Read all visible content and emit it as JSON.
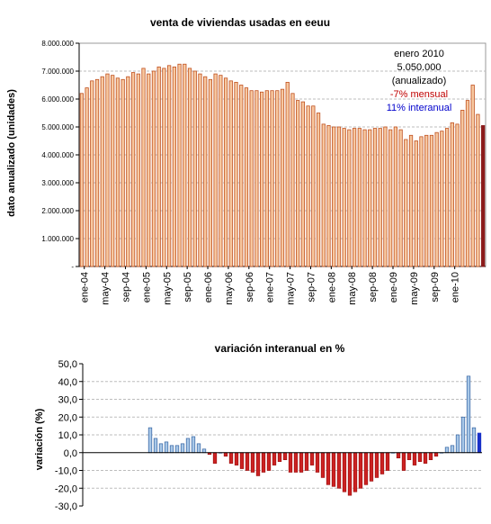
{
  "chart_data": [
    {
      "type": "bar",
      "title": "venta de viviendas usadas en eeuu",
      "ylabel": "dato anualizado (unidades)",
      "ylim": [
        0,
        8000000
      ],
      "y_ticks": [
        "-",
        "1.000.000",
        "2.000.000",
        "3.000.000",
        "4.000.000",
        "5.000.000",
        "6.000.000",
        "7.000.000",
        "8.000.000"
      ],
      "x_tick_labels": [
        "ene-04",
        "may-04",
        "sep-04",
        "ene-05",
        "may-05",
        "sep-05",
        "ene-06",
        "may-06",
        "sep-06",
        "ene-07",
        "may-07",
        "sep-07",
        "ene-08",
        "may-08",
        "sep-08",
        "ene-09",
        "may-09",
        "sep-09",
        "ene-10"
      ],
      "grid": true,
      "colors": {
        "bar_fill": "#F7C8A0",
        "bar_stroke": "#C0501E",
        "highlight_fill": "#8B1A1A",
        "plot_bg": "#FFFFFF"
      },
      "annotation": {
        "lines": [
          {
            "text": "enero 2010",
            "color": "#000000"
          },
          {
            "text": "5.050.000",
            "color": "#000000"
          },
          {
            "text": "(anualizado)",
            "color": "#000000"
          },
          {
            "text": "-7% mensual",
            "color": "#C00000"
          },
          {
            "text": "11% interanual",
            "color": "#0000CC"
          }
        ]
      },
      "values": [
        6200000,
        6400000,
        6650000,
        6700000,
        6800000,
        6900000,
        6850000,
        6750000,
        6700000,
        6800000,
        6950000,
        6900000,
        7100000,
        6900000,
        7000000,
        7150000,
        7100000,
        7200000,
        7150000,
        7250000,
        7250000,
        7100000,
        7000000,
        6900000,
        6800000,
        6700000,
        6900000,
        6850000,
        6750000,
        6650000,
        6600000,
        6500000,
        6400000,
        6300000,
        6300000,
        6250000,
        6300000,
        6300000,
        6300000,
        6350000,
        6600000,
        6200000,
        5950000,
        5900000,
        5750000,
        5750000,
        5500000,
        5100000,
        5050000,
        5000000,
        5000000,
        4950000,
        4900000,
        4950000,
        4950000,
        4900000,
        4900000,
        4950000,
        4950000,
        5000000,
        4900000,
        5000000,
        4900000,
        4550000,
        4700000,
        4500000,
        4650000,
        4700000,
        4700000,
        4800000,
        4850000,
        4950000,
        5150000,
        5100000,
        5600000,
        5950000,
        6500000,
        5450000,
        5050000
      ]
    },
    {
      "type": "bar",
      "title": "variación interanual en %",
      "ylabel": "variación (%)",
      "ylim": [
        -30,
        50
      ],
      "y_ticks": [
        "-30,0",
        "-20,0",
        "-10,0",
        "0,0",
        "10,0",
        "20,0",
        "30,0",
        "40,0",
        "50,0"
      ],
      "grid": true,
      "colors": {
        "pos_fill": "#A8C8E8",
        "pos_stroke": "#3060A0",
        "neg_fill": "#CC2222",
        "neg_stroke": "#A01010",
        "highlight_fill": "#1830C8"
      },
      "values": [
        null,
        null,
        null,
        null,
        null,
        null,
        null,
        null,
        null,
        null,
        null,
        null,
        14,
        8,
        5,
        6,
        4,
        4,
        5,
        8,
        9,
        5,
        2,
        -1,
        -6,
        0,
        -2,
        -6,
        -7,
        -9,
        -10,
        -11,
        -13,
        -11,
        -10,
        -7,
        -5,
        -4,
        -11,
        -11,
        -11,
        -10,
        -7,
        -11,
        -14,
        -18,
        -19,
        -20,
        -22,
        -24,
        -22,
        -20,
        -18,
        -16,
        -14,
        -12,
        -10,
        0,
        -3,
        -10,
        -4,
        -7,
        -5,
        -6,
        -4,
        -2,
        0,
        3,
        4,
        10,
        20,
        43,
        14,
        11
      ]
    }
  ]
}
